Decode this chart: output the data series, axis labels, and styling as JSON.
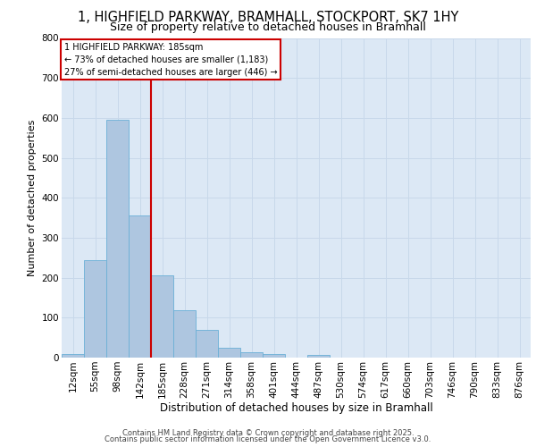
{
  "title_line1": "1, HIGHFIELD PARKWAY, BRAMHALL, STOCKPORT, SK7 1HY",
  "title_line2": "Size of property relative to detached houses in Bramhall",
  "xlabel": "Distribution of detached houses by size in Bramhall",
  "ylabel": "Number of detached properties",
  "footer_line1": "Contains HM Land Registry data © Crown copyright and database right 2025.",
  "footer_line2": "Contains public sector information licensed under the Open Government Licence v3.0.",
  "bar_labels": [
    "12sqm",
    "55sqm",
    "98sqm",
    "142sqm",
    "185sqm",
    "228sqm",
    "271sqm",
    "314sqm",
    "358sqm",
    "401sqm",
    "444sqm",
    "487sqm",
    "530sqm",
    "574sqm",
    "617sqm",
    "660sqm",
    "703sqm",
    "746sqm",
    "790sqm",
    "833sqm",
    "876sqm"
  ],
  "bar_values": [
    8,
    245,
    595,
    355,
    205,
    118,
    70,
    25,
    13,
    8,
    0,
    6,
    0,
    0,
    0,
    0,
    0,
    0,
    0,
    0,
    0
  ],
  "bar_color": "#aec6e0",
  "bar_edgecolor": "#6aafd6",
  "annotation_line1": "1 HIGHFIELD PARKWAY: 185sqm",
  "annotation_line2": "← 73% of detached houses are smaller (1,183)",
  "annotation_line3": "27% of semi-detached houses are larger (446) →",
  "vline_color": "#cc0000",
  "annotation_box_edgecolor": "#cc0000",
  "ylim": [
    0,
    800
  ],
  "yticks": [
    0,
    100,
    200,
    300,
    400,
    500,
    600,
    700,
    800
  ],
  "grid_color": "#c8d8ea",
  "background_color": "#dce8f5",
  "plot_background": "#ffffff",
  "title_fontsize": 10.5,
  "subtitle_fontsize": 9,
  "ylabel_fontsize": 8,
  "xlabel_fontsize": 8.5,
  "tick_fontsize": 7.5,
  "ann_fontsize": 7.0,
  "footer_fontsize": 6.0
}
